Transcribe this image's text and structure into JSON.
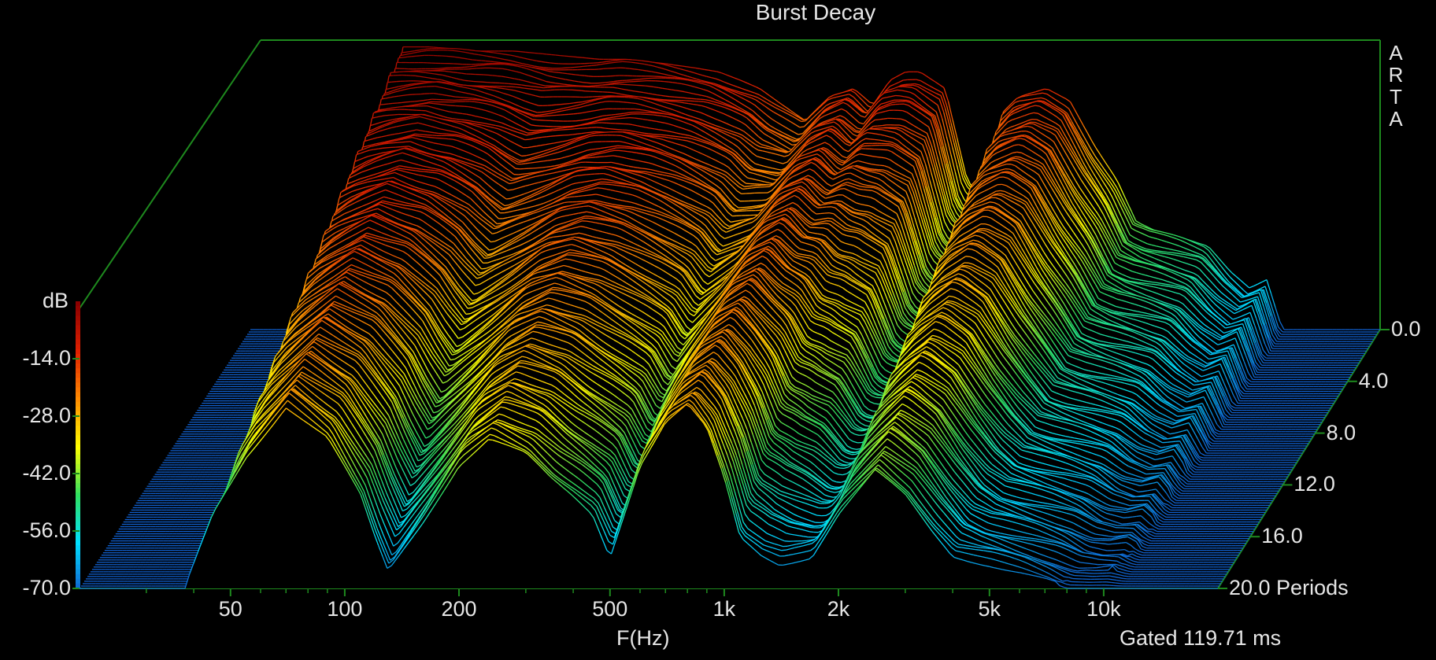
{
  "chart_data": {
    "type": "waterfall",
    "title": "Burst Decay",
    "watermark": "ARTA",
    "xlabel": "F(Hz)",
    "zlabel": "dB",
    "ylabel": "Periods",
    "gated_note": "Gated 119.71 ms",
    "x_scale": "log",
    "xlim": [
      20,
      20000
    ],
    "x_ticks": [
      50,
      100,
      200,
      500,
      1000,
      2000,
      5000,
      10000
    ],
    "x_tick_labels": [
      "50",
      "100",
      "200",
      "500",
      "1k",
      "2k",
      "5k",
      "10k"
    ],
    "zlim": [
      -70,
      0
    ],
    "z_ticks": [
      -14,
      -28,
      -42,
      -56,
      -70
    ],
    "z_tick_labels": [
      "-14.0",
      "-28.0",
      "-42.0",
      "-56.0",
      "-70.0"
    ],
    "ylim": [
      0,
      20
    ],
    "y_ticks": [
      0,
      4,
      8,
      12,
      16,
      20
    ],
    "y_tick_labels": [
      "0.0",
      "4.0",
      "8.0",
      "12.0",
      "16.0",
      "20.0 Periods"
    ],
    "colorscale": [
      "#1060d0",
      "#00e0ff",
      "#30e060",
      "#ffff00",
      "#ff8c00",
      "#e02000",
      "#8b0000"
    ],
    "front_response": {
      "freq_hz": [
        20,
        38,
        45,
        55,
        70,
        90,
        110,
        120,
        130,
        160,
        200,
        240,
        300,
        350,
        400,
        450,
        500,
        600,
        700,
        800,
        900,
        1000,
        1100,
        1250,
        1400,
        1700,
        2000,
        2500,
        3000,
        3500,
        4000,
        5000,
        6000,
        7000,
        8000,
        9000,
        10000,
        12000,
        15000,
        20000
      ],
      "level_db": [
        -70,
        -70,
        -52,
        -38,
        -26,
        -34,
        -48,
        -58,
        -66,
        -54,
        -40,
        -34,
        -38,
        -44,
        -48,
        -52,
        -62,
        -40,
        -30,
        -26,
        -32,
        -44,
        -58,
        -62,
        -64,
        -62,
        -52,
        -42,
        -48,
        -56,
        -62,
        -64,
        -66,
        -68,
        -70,
        -70,
        -70,
        -70,
        -70,
        -70
      ]
    },
    "back_response": {
      "freq_hz": [
        20,
        45,
        50,
        60,
        80,
        100,
        130,
        170,
        200,
        250,
        300,
        350,
        400,
        450,
        500,
        600,
        700,
        800,
        900,
        1000,
        1100,
        1200,
        1400,
        1600,
        1800,
        2000,
        2200,
        2600,
        3000,
        3500,
        4000,
        4500,
        5000,
        6000,
        7000,
        8000,
        9000,
        10000,
        11000,
        20000
      ],
      "level_db": [
        -70,
        -70,
        -2,
        -2,
        -3,
        -3,
        -4,
        -5,
        -5,
        -6,
        -7,
        -8,
        -10,
        -12,
        -15,
        -20,
        -14,
        -12,
        -16,
        -10,
        -8,
        -8,
        -12,
        -34,
        -40,
        -18,
        -14,
        -12,
        -15,
        -26,
        -34,
        -44,
        -46,
        -48,
        -50,
        -56,
        -60,
        -58,
        -70,
        -70
      ]
    }
  }
}
